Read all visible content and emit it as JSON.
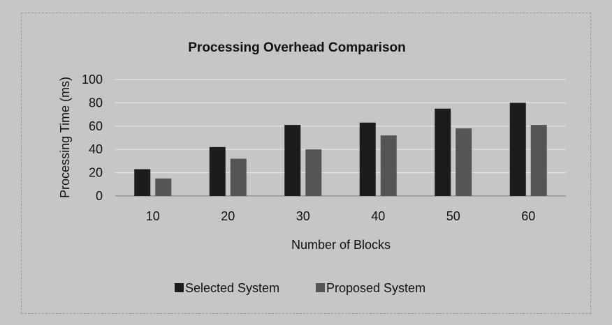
{
  "chart_data": {
    "type": "bar",
    "title": "Processing Overhead Comparison",
    "xlabel": "Number of Blocks",
    "ylabel": "Processing Time (ms)",
    "categories": [
      "10",
      "20",
      "30",
      "40",
      "50",
      "60"
    ],
    "series": [
      {
        "name": "Selected System",
        "values": [
          23,
          42,
          61,
          63,
          75,
          80
        ],
        "color": "#1c1c1c"
      },
      {
        "name": "Proposed System",
        "values": [
          15,
          32,
          40,
          52,
          58,
          61
        ],
        "color": "#555555"
      }
    ],
    "ylim": [
      0,
      100
    ],
    "yticks": [
      "0",
      "20",
      "40",
      "60",
      "80",
      "100"
    ],
    "grid": true,
    "legend": "bottom",
    "colors": {
      "background": "#c6c6c6",
      "gridline": "#e4e4e4",
      "axis": "#8a8a8a",
      "text": "#111111"
    }
  }
}
